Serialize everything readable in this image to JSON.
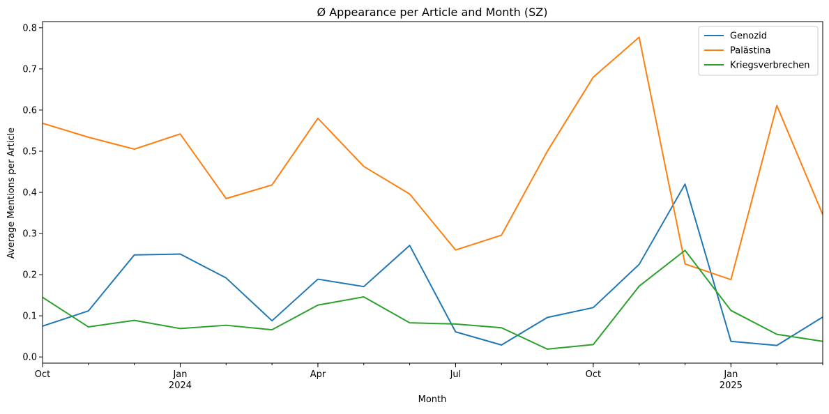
{
  "chart_data": {
    "type": "line",
    "title": "Ø Appearance per Article and Month (SZ)",
    "xlabel": "Month",
    "ylabel": "Average Mentions per Article",
    "x": [
      "2023-10",
      "2023-11",
      "2023-12",
      "2024-01",
      "2024-02",
      "2024-03",
      "2024-04",
      "2024-05",
      "2024-06",
      "2024-07",
      "2024-08",
      "2024-09",
      "2024-10",
      "2024-11",
      "2024-12",
      "2025-01",
      "2025-02",
      "2025-03"
    ],
    "xlim": [
      "2023-10",
      "2025-03"
    ],
    "ylim": [
      -0.015,
      0.815
    ],
    "xticks": [
      {
        "x": "2023-10",
        "label": "Oct",
        "sub": ""
      },
      {
        "x": "2024-01",
        "label": "Jan",
        "sub": "2024"
      },
      {
        "x": "2024-04",
        "label": "Apr",
        "sub": ""
      },
      {
        "x": "2024-07",
        "label": "Jul",
        "sub": ""
      },
      {
        "x": "2024-10",
        "label": "Oct",
        "sub": ""
      },
      {
        "x": "2025-01",
        "label": "Jan",
        "sub": "2025"
      }
    ],
    "yticks": [
      "0.0",
      "0.1",
      "0.2",
      "0.3",
      "0.4",
      "0.5",
      "0.6",
      "0.7",
      "0.8"
    ],
    "grid": false,
    "legend_position": "top-right",
    "series": [
      {
        "name": "Genozid",
        "color": "#1f77b4",
        "values": [
          0.075,
          0.112,
          0.248,
          0.25,
          0.192,
          0.088,
          0.189,
          0.171,
          0.271,
          0.061,
          0.029,
          0.096,
          0.12,
          0.225,
          0.42,
          0.038,
          0.028,
          0.097
        ]
      },
      {
        "name": "Palästina",
        "color": "#ff7f0e",
        "values": [
          0.568,
          0.534,
          0.505,
          0.542,
          0.385,
          0.418,
          0.58,
          0.463,
          0.396,
          0.26,
          0.296,
          0.5,
          0.68,
          0.777,
          0.226,
          0.188,
          0.611,
          0.346
        ]
      },
      {
        "name": "Kriegsverbrechen",
        "color": "#2ca02c",
        "values": [
          0.145,
          0.073,
          0.089,
          0.069,
          0.077,
          0.066,
          0.126,
          0.146,
          0.083,
          0.08,
          0.071,
          0.019,
          0.03,
          0.172,
          0.259,
          0.113,
          0.055,
          0.038
        ]
      }
    ]
  }
}
